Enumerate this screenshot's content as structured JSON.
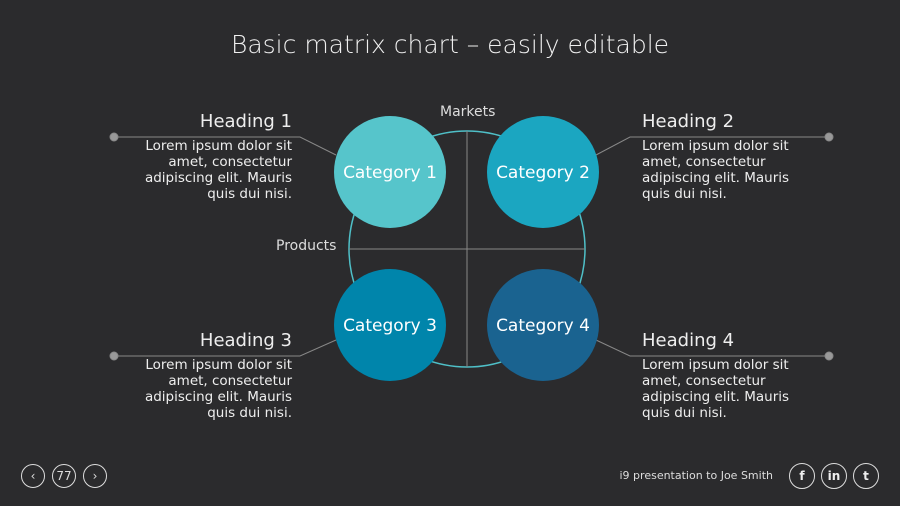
{
  "title": "Basic matrix chart – easily editable",
  "axes": {
    "vertical": "Markets",
    "horizontal": "Products"
  },
  "categories": [
    {
      "label": "Category 1",
      "color": "#56c5cb"
    },
    {
      "label": "Category 2",
      "color": "#1ba6c1"
    },
    {
      "label": "Category 3",
      "color": "#0085ab"
    },
    {
      "label": "Category 4",
      "color": "#1a6390"
    }
  ],
  "callouts": [
    {
      "heading": "Heading 1",
      "text": "Lorem ipsum dolor sit amet, consectetur adipiscing elit. Mauris quis dui nisi."
    },
    {
      "heading": "Heading 2",
      "text": "Lorem ipsum dolor sit amet, consectetur adipiscing elit. Mauris quis dui nisi."
    },
    {
      "heading": "Heading 3",
      "text": "Lorem ipsum dolor sit amet, consectetur adipiscing elit. Mauris quis dui nisi."
    },
    {
      "heading": "Heading 4",
      "text": "Lorem ipsum dolor sit amet, consectetur adipiscing elit. Mauris quis dui nisi."
    }
  ],
  "footer": {
    "prev_icon": "chevron-left-icon",
    "prev": "‹",
    "page": "77",
    "next_icon": "chevron-right-icon",
    "next": "›",
    "presentation": "i9 presentation to Joe Smith",
    "social": [
      {
        "icon": "facebook-icon",
        "glyph": "f"
      },
      {
        "icon": "linkedin-icon",
        "glyph": "in"
      },
      {
        "icon": "twitter-icon",
        "glyph": "t"
      }
    ]
  }
}
